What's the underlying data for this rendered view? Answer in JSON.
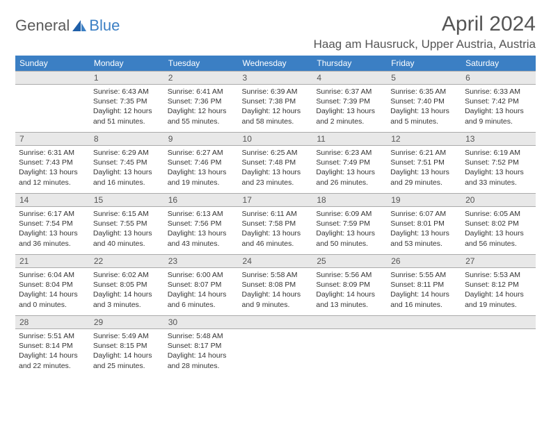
{
  "brand": {
    "part1": "General",
    "part2": "Blue"
  },
  "title": "April 2024",
  "location": "Haag am Hausruck, Upper Austria, Austria",
  "colors": {
    "header_bg": "#3b7fc4",
    "header_text": "#ffffff",
    "daynum_bg": "#e8e8e8",
    "daynum_border": "#aaaaaa",
    "body_text": "#333333",
    "title_text": "#555555",
    "logo_gray": "#5a5a5a",
    "logo_blue": "#3b7fc4"
  },
  "fonts": {
    "title_size_pt": 30,
    "location_size_pt": 17,
    "weekday_size_pt": 12,
    "daynum_size_pt": 12,
    "cell_size_pt": 10.5
  },
  "weekdays": [
    "Sunday",
    "Monday",
    "Tuesday",
    "Wednesday",
    "Thursday",
    "Friday",
    "Saturday"
  ],
  "weeks": [
    [
      {
        "n": "",
        "sr": "",
        "ss": "",
        "dl": ""
      },
      {
        "n": "1",
        "sr": "Sunrise: 6:43 AM",
        "ss": "Sunset: 7:35 PM",
        "dl": "Daylight: 12 hours and 51 minutes."
      },
      {
        "n": "2",
        "sr": "Sunrise: 6:41 AM",
        "ss": "Sunset: 7:36 PM",
        "dl": "Daylight: 12 hours and 55 minutes."
      },
      {
        "n": "3",
        "sr": "Sunrise: 6:39 AM",
        "ss": "Sunset: 7:38 PM",
        "dl": "Daylight: 12 hours and 58 minutes."
      },
      {
        "n": "4",
        "sr": "Sunrise: 6:37 AM",
        "ss": "Sunset: 7:39 PM",
        "dl": "Daylight: 13 hours and 2 minutes."
      },
      {
        "n": "5",
        "sr": "Sunrise: 6:35 AM",
        "ss": "Sunset: 7:40 PM",
        "dl": "Daylight: 13 hours and 5 minutes."
      },
      {
        "n": "6",
        "sr": "Sunrise: 6:33 AM",
        "ss": "Sunset: 7:42 PM",
        "dl": "Daylight: 13 hours and 9 minutes."
      }
    ],
    [
      {
        "n": "7",
        "sr": "Sunrise: 6:31 AM",
        "ss": "Sunset: 7:43 PM",
        "dl": "Daylight: 13 hours and 12 minutes."
      },
      {
        "n": "8",
        "sr": "Sunrise: 6:29 AM",
        "ss": "Sunset: 7:45 PM",
        "dl": "Daylight: 13 hours and 16 minutes."
      },
      {
        "n": "9",
        "sr": "Sunrise: 6:27 AM",
        "ss": "Sunset: 7:46 PM",
        "dl": "Daylight: 13 hours and 19 minutes."
      },
      {
        "n": "10",
        "sr": "Sunrise: 6:25 AM",
        "ss": "Sunset: 7:48 PM",
        "dl": "Daylight: 13 hours and 23 minutes."
      },
      {
        "n": "11",
        "sr": "Sunrise: 6:23 AM",
        "ss": "Sunset: 7:49 PM",
        "dl": "Daylight: 13 hours and 26 minutes."
      },
      {
        "n": "12",
        "sr": "Sunrise: 6:21 AM",
        "ss": "Sunset: 7:51 PM",
        "dl": "Daylight: 13 hours and 29 minutes."
      },
      {
        "n": "13",
        "sr": "Sunrise: 6:19 AM",
        "ss": "Sunset: 7:52 PM",
        "dl": "Daylight: 13 hours and 33 minutes."
      }
    ],
    [
      {
        "n": "14",
        "sr": "Sunrise: 6:17 AM",
        "ss": "Sunset: 7:54 PM",
        "dl": "Daylight: 13 hours and 36 minutes."
      },
      {
        "n": "15",
        "sr": "Sunrise: 6:15 AM",
        "ss": "Sunset: 7:55 PM",
        "dl": "Daylight: 13 hours and 40 minutes."
      },
      {
        "n": "16",
        "sr": "Sunrise: 6:13 AM",
        "ss": "Sunset: 7:56 PM",
        "dl": "Daylight: 13 hours and 43 minutes."
      },
      {
        "n": "17",
        "sr": "Sunrise: 6:11 AM",
        "ss": "Sunset: 7:58 PM",
        "dl": "Daylight: 13 hours and 46 minutes."
      },
      {
        "n": "18",
        "sr": "Sunrise: 6:09 AM",
        "ss": "Sunset: 7:59 PM",
        "dl": "Daylight: 13 hours and 50 minutes."
      },
      {
        "n": "19",
        "sr": "Sunrise: 6:07 AM",
        "ss": "Sunset: 8:01 PM",
        "dl": "Daylight: 13 hours and 53 minutes."
      },
      {
        "n": "20",
        "sr": "Sunrise: 6:05 AM",
        "ss": "Sunset: 8:02 PM",
        "dl": "Daylight: 13 hours and 56 minutes."
      }
    ],
    [
      {
        "n": "21",
        "sr": "Sunrise: 6:04 AM",
        "ss": "Sunset: 8:04 PM",
        "dl": "Daylight: 14 hours and 0 minutes."
      },
      {
        "n": "22",
        "sr": "Sunrise: 6:02 AM",
        "ss": "Sunset: 8:05 PM",
        "dl": "Daylight: 14 hours and 3 minutes."
      },
      {
        "n": "23",
        "sr": "Sunrise: 6:00 AM",
        "ss": "Sunset: 8:07 PM",
        "dl": "Daylight: 14 hours and 6 minutes."
      },
      {
        "n": "24",
        "sr": "Sunrise: 5:58 AM",
        "ss": "Sunset: 8:08 PM",
        "dl": "Daylight: 14 hours and 9 minutes."
      },
      {
        "n": "25",
        "sr": "Sunrise: 5:56 AM",
        "ss": "Sunset: 8:09 PM",
        "dl": "Daylight: 14 hours and 13 minutes."
      },
      {
        "n": "26",
        "sr": "Sunrise: 5:55 AM",
        "ss": "Sunset: 8:11 PM",
        "dl": "Daylight: 14 hours and 16 minutes."
      },
      {
        "n": "27",
        "sr": "Sunrise: 5:53 AM",
        "ss": "Sunset: 8:12 PM",
        "dl": "Daylight: 14 hours and 19 minutes."
      }
    ],
    [
      {
        "n": "28",
        "sr": "Sunrise: 5:51 AM",
        "ss": "Sunset: 8:14 PM",
        "dl": "Daylight: 14 hours and 22 minutes."
      },
      {
        "n": "29",
        "sr": "Sunrise: 5:49 AM",
        "ss": "Sunset: 8:15 PM",
        "dl": "Daylight: 14 hours and 25 minutes."
      },
      {
        "n": "30",
        "sr": "Sunrise: 5:48 AM",
        "ss": "Sunset: 8:17 PM",
        "dl": "Daylight: 14 hours and 28 minutes."
      },
      {
        "n": "",
        "sr": "",
        "ss": "",
        "dl": ""
      },
      {
        "n": "",
        "sr": "",
        "ss": "",
        "dl": ""
      },
      {
        "n": "",
        "sr": "",
        "ss": "",
        "dl": ""
      },
      {
        "n": "",
        "sr": "",
        "ss": "",
        "dl": ""
      }
    ]
  ]
}
